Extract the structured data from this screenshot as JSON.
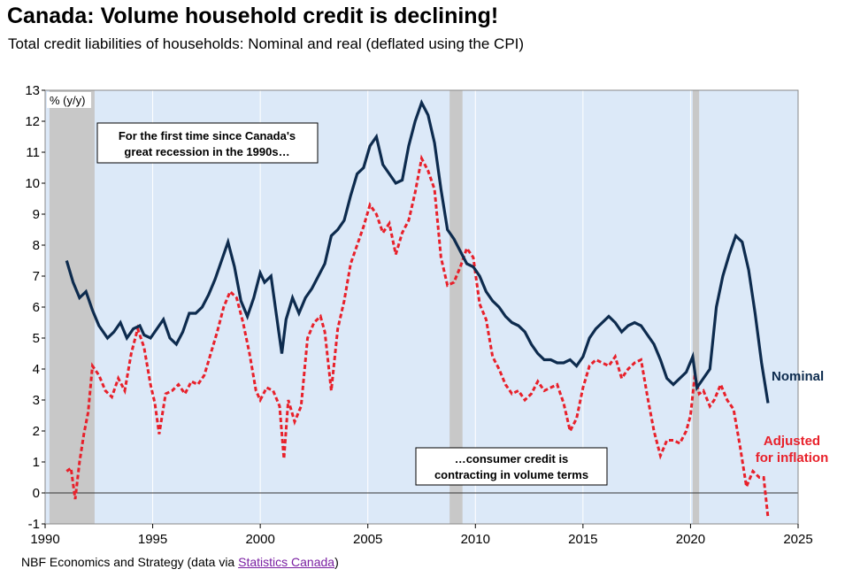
{
  "header": {
    "title": "Canada: Volume household credit is declining!",
    "subtitle": "Total credit liabilities of households: Nominal and real (deflated using the CPI)"
  },
  "footer": {
    "source_prefix": "NBF Economics and Strategy (data via ",
    "source_link": "Statistics Canada",
    "source_suffix": ")"
  },
  "chart_data": {
    "type": "line",
    "ylabel": "% (y/y)",
    "xlim": [
      1990,
      2025
    ],
    "ylim": [
      -1,
      13
    ],
    "x_ticks": [
      "1990",
      "1995",
      "2000",
      "2005",
      "2010",
      "2015",
      "2020",
      "2025"
    ],
    "y_ticks": [
      "-1",
      "0",
      "1",
      "2",
      "3",
      "4",
      "5",
      "6",
      "7",
      "8",
      "9",
      "10",
      "11",
      "12",
      "13"
    ],
    "recessions": [
      [
        1990.2,
        1992.3
      ],
      [
        2008.8,
        2009.4
      ],
      [
        2020.1,
        2020.4
      ]
    ],
    "annotations": [
      "For the first time since Canada's great recession in the 1990s…",
      "…consumer credit is contracting in volume terms"
    ],
    "colors": {
      "nominal": "#0d2b4e",
      "real": "#e8202a",
      "recession": "#c8c8c8",
      "plot_bg": "#dce9f8"
    },
    "series": [
      {
        "name": "Nominal",
        "x": [
          1991.0,
          1991.3,
          1991.6,
          1991.9,
          1992.2,
          1992.5,
          1992.9,
          1993.2,
          1993.5,
          1993.8,
          1994.1,
          1994.4,
          1994.6,
          1994.9,
          1995.2,
          1995.5,
          1995.8,
          1996.1,
          1996.4,
          1996.7,
          1997.0,
          1997.3,
          1997.6,
          1997.9,
          1998.2,
          1998.5,
          1998.8,
          1999.1,
          1999.4,
          1999.7,
          2000.0,
          2000.2,
          2000.5,
          2000.8,
          2001.0,
          2001.2,
          2001.5,
          2001.8,
          2002.1,
          2002.4,
          2002.7,
          2003.0,
          2003.3,
          2003.6,
          2003.9,
          2004.2,
          2004.5,
          2004.8,
          2005.1,
          2005.4,
          2005.7,
          2006.0,
          2006.3,
          2006.6,
          2006.9,
          2007.2,
          2007.5,
          2007.8,
          2008.1,
          2008.4,
          2008.7,
          2009.0,
          2009.3,
          2009.6,
          2009.9,
          2010.2,
          2010.5,
          2010.8,
          2011.1,
          2011.4,
          2011.7,
          2012.0,
          2012.3,
          2012.6,
          2012.9,
          2013.2,
          2013.5,
          2013.8,
          2014.1,
          2014.4,
          2014.7,
          2015.0,
          2015.3,
          2015.6,
          2015.9,
          2016.2,
          2016.5,
          2016.8,
          2017.1,
          2017.4,
          2017.7,
          2018.0,
          2018.3,
          2018.6,
          2018.9,
          2019.2,
          2019.5,
          2019.8,
          2020.1,
          2020.3,
          2020.6,
          2020.9,
          2021.2,
          2021.5,
          2021.8,
          2022.1,
          2022.4,
          2022.7,
          2023.0,
          2023.3,
          2023.6
        ],
        "y": [
          7.5,
          6.8,
          6.3,
          6.5,
          5.9,
          5.4,
          5.0,
          5.2,
          5.5,
          5.0,
          5.3,
          5.4,
          5.1,
          5.0,
          5.3,
          5.6,
          5.0,
          4.8,
          5.2,
          5.8,
          5.8,
          6.0,
          6.4,
          6.9,
          7.5,
          8.1,
          7.3,
          6.2,
          5.7,
          6.3,
          7.1,
          6.8,
          7.0,
          5.5,
          4.5,
          5.6,
          6.3,
          5.8,
          6.3,
          6.6,
          7.0,
          7.4,
          8.3,
          8.5,
          8.8,
          9.6,
          10.3,
          10.5,
          11.2,
          11.5,
          10.6,
          10.3,
          10.0,
          10.1,
          11.2,
          12.0,
          12.6,
          12.2,
          11.3,
          9.8,
          8.5,
          8.2,
          7.8,
          7.4,
          7.3,
          7.0,
          6.5,
          6.2,
          6.0,
          5.7,
          5.5,
          5.4,
          5.2,
          4.8,
          4.5,
          4.3,
          4.3,
          4.2,
          4.2,
          4.3,
          4.1,
          4.4,
          5.0,
          5.3,
          5.5,
          5.7,
          5.5,
          5.2,
          5.4,
          5.5,
          5.4,
          5.1,
          4.8,
          4.3,
          3.7,
          3.5,
          3.7,
          3.9,
          4.4,
          3.4,
          3.7,
          4.0,
          6.0,
          7.0,
          7.7,
          8.3,
          8.1,
          7.2,
          5.8,
          4.2,
          2.9
        ]
      },
      {
        "name": "Adjusted for inflation",
        "x": [
          1991.0,
          1991.2,
          1991.4,
          1991.6,
          1991.8,
          1992.0,
          1992.2,
          1992.5,
          1992.8,
          1993.1,
          1993.4,
          1993.7,
          1994.0,
          1994.3,
          1994.6,
          1994.9,
          1995.1,
          1995.3,
          1995.6,
          1995.9,
          1996.2,
          1996.5,
          1996.8,
          1997.1,
          1997.4,
          1997.7,
          1998.0,
          1998.3,
          1998.6,
          1998.9,
          1999.2,
          1999.5,
          1999.8,
          2000.0,
          2000.3,
          2000.6,
          2000.9,
          2001.1,
          2001.3,
          2001.6,
          2001.9,
          2002.2,
          2002.5,
          2002.8,
          2003.0,
          2003.3,
          2003.6,
          2003.9,
          2004.2,
          2004.5,
          2004.8,
          2005.1,
          2005.4,
          2005.7,
          2006.0,
          2006.3,
          2006.6,
          2006.9,
          2007.2,
          2007.5,
          2007.8,
          2008.1,
          2008.4,
          2008.7,
          2009.0,
          2009.3,
          2009.6,
          2009.9,
          2010.2,
          2010.5,
          2010.8,
          2011.1,
          2011.4,
          2011.7,
          2012.0,
          2012.3,
          2012.6,
          2012.9,
          2013.2,
          2013.5,
          2013.8,
          2014.1,
          2014.4,
          2014.7,
          2015.0,
          2015.3,
          2015.6,
          2015.9,
          2016.2,
          2016.5,
          2016.8,
          2017.1,
          2017.4,
          2017.7,
          2018.0,
          2018.3,
          2018.6,
          2018.9,
          2019.2,
          2019.5,
          2019.8,
          2020.0,
          2020.2,
          2020.4,
          2020.6,
          2020.9,
          2021.1,
          2021.4,
          2021.7,
          2022.0,
          2022.3,
          2022.6,
          2022.9,
          2023.2,
          2023.4,
          2023.6
        ],
        "y": [
          0.7,
          0.8,
          -0.2,
          1.0,
          1.9,
          2.6,
          4.1,
          3.8,
          3.3,
          3.1,
          3.7,
          3.3,
          4.5,
          5.3,
          4.7,
          3.5,
          2.9,
          1.9,
          3.2,
          3.3,
          3.5,
          3.2,
          3.6,
          3.5,
          3.8,
          4.5,
          5.2,
          6.0,
          6.5,
          6.3,
          5.5,
          4.5,
          3.3,
          3.0,
          3.4,
          3.3,
          2.8,
          1.1,
          3.0,
          2.3,
          2.8,
          5.0,
          5.5,
          5.7,
          5.2,
          3.3,
          5.3,
          6.2,
          7.4,
          8.0,
          8.6,
          9.3,
          9.0,
          8.4,
          8.7,
          7.7,
          8.4,
          8.8,
          9.7,
          10.8,
          10.4,
          9.8,
          7.6,
          6.7,
          6.8,
          7.3,
          7.9,
          7.6,
          6.1,
          5.6,
          4.4,
          4.0,
          3.5,
          3.2,
          3.3,
          3.0,
          3.2,
          3.6,
          3.3,
          3.4,
          3.5,
          2.9,
          2.0,
          2.4,
          3.4,
          4.1,
          4.3,
          4.2,
          4.1,
          4.4,
          3.7,
          4.0,
          4.2,
          4.3,
          3.1,
          2.0,
          1.2,
          1.7,
          1.7,
          1.6,
          2.0,
          2.5,
          3.8,
          3.2,
          3.3,
          2.8,
          3.0,
          3.5,
          3.0,
          2.7,
          1.5,
          0.2,
          0.7,
          0.5,
          0.5,
          -0.8
        ]
      }
    ]
  }
}
